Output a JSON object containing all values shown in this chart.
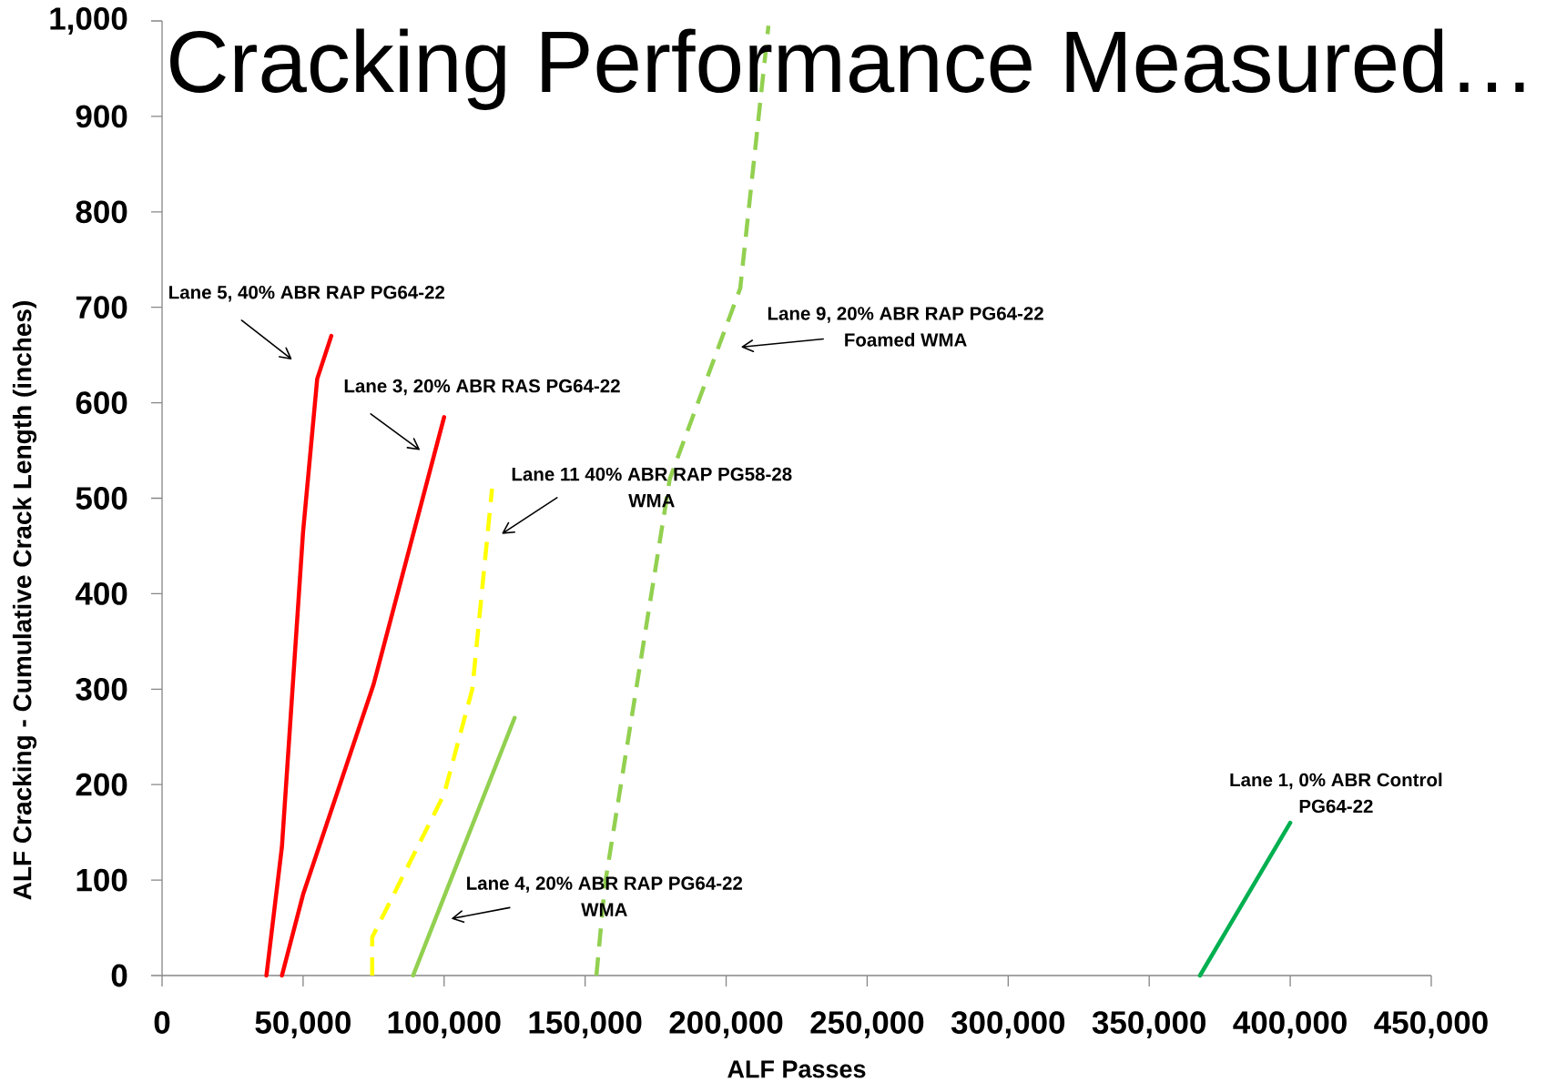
{
  "chart_data": {
    "type": "line",
    "title": "Cracking Performance Measured…",
    "xlabel": "ALF Passes",
    "ylabel": "ALF Cracking - Cumulative Crack Length (inches)",
    "xlim": [
      0,
      450000
    ],
    "ylim": [
      0,
      1000
    ],
    "xticks": [
      0,
      {
        "value": 50000,
        "label": "50,000"
      },
      {
        "value": 100000,
        "label": "100,000"
      },
      {
        "value": 150000,
        "label": "150,000"
      },
      {
        "value": 200000,
        "label": "200,000"
      },
      {
        "value": 250000,
        "label": "250,000"
      },
      {
        "value": 300000,
        "label": "300,000"
      },
      {
        "value": 350000,
        "label": "350,000"
      },
      {
        "value": 400000,
        "label": "400,000"
      },
      {
        "value": 450000,
        "label": "450,000"
      }
    ],
    "yticks": [
      0,
      100,
      200,
      300,
      400,
      500,
      600,
      700,
      800,
      900,
      {
        "value": 1000,
        "label": "1,000"
      }
    ],
    "series": [
      {
        "color": "#ff0000",
        "line_style": "solid",
        "x": [
          37000,
          42500,
          50000,
          55000,
          60000
        ],
        "values": [
          0,
          135,
          465,
          625,
          670
        ]
      },
      {
        "color": "#ff0000",
        "line_style": "solid",
        "x": [
          42500,
          50000,
          75000,
          100000
        ],
        "values": [
          0,
          85,
          305,
          585
        ]
      },
      {
        "color": "#ffff00",
        "line_style": "dashed",
        "x": [
          74500,
          74500,
          100000,
          110000,
          117000
        ],
        "values": [
          0,
          40,
          190,
          300,
          510
        ]
      },
      {
        "color": "#92d050",
        "line_style": "solid",
        "x": [
          89000,
          125000
        ],
        "values": [
          0,
          270
        ]
      },
      {
        "color": "#92d050",
        "line_style": "dashed",
        "x": [
          154000,
          157000,
          180000,
          205000,
          215000
        ],
        "values": [
          0,
          95,
          520,
          720,
          995
        ]
      },
      {
        "color": "#00b050",
        "line_style": "solid",
        "x": [
          368000,
          400000
        ],
        "values": [
          0,
          160
        ]
      }
    ],
    "annotations": [
      "Lane 5, 40% ABR RAP PG64-22",
      "Lane 3, 20% ABR RAS PG64-22",
      "Lane 11 40% ABR RAP PG58-28 WMA",
      "Lane 4, 20% ABR RAP PG64-22 WMA",
      "Lane 9, 20% ABR RAP PG64-22 Foamed WMA",
      "Lane 1, 0% ABR Control PG64-22"
    ]
  }
}
